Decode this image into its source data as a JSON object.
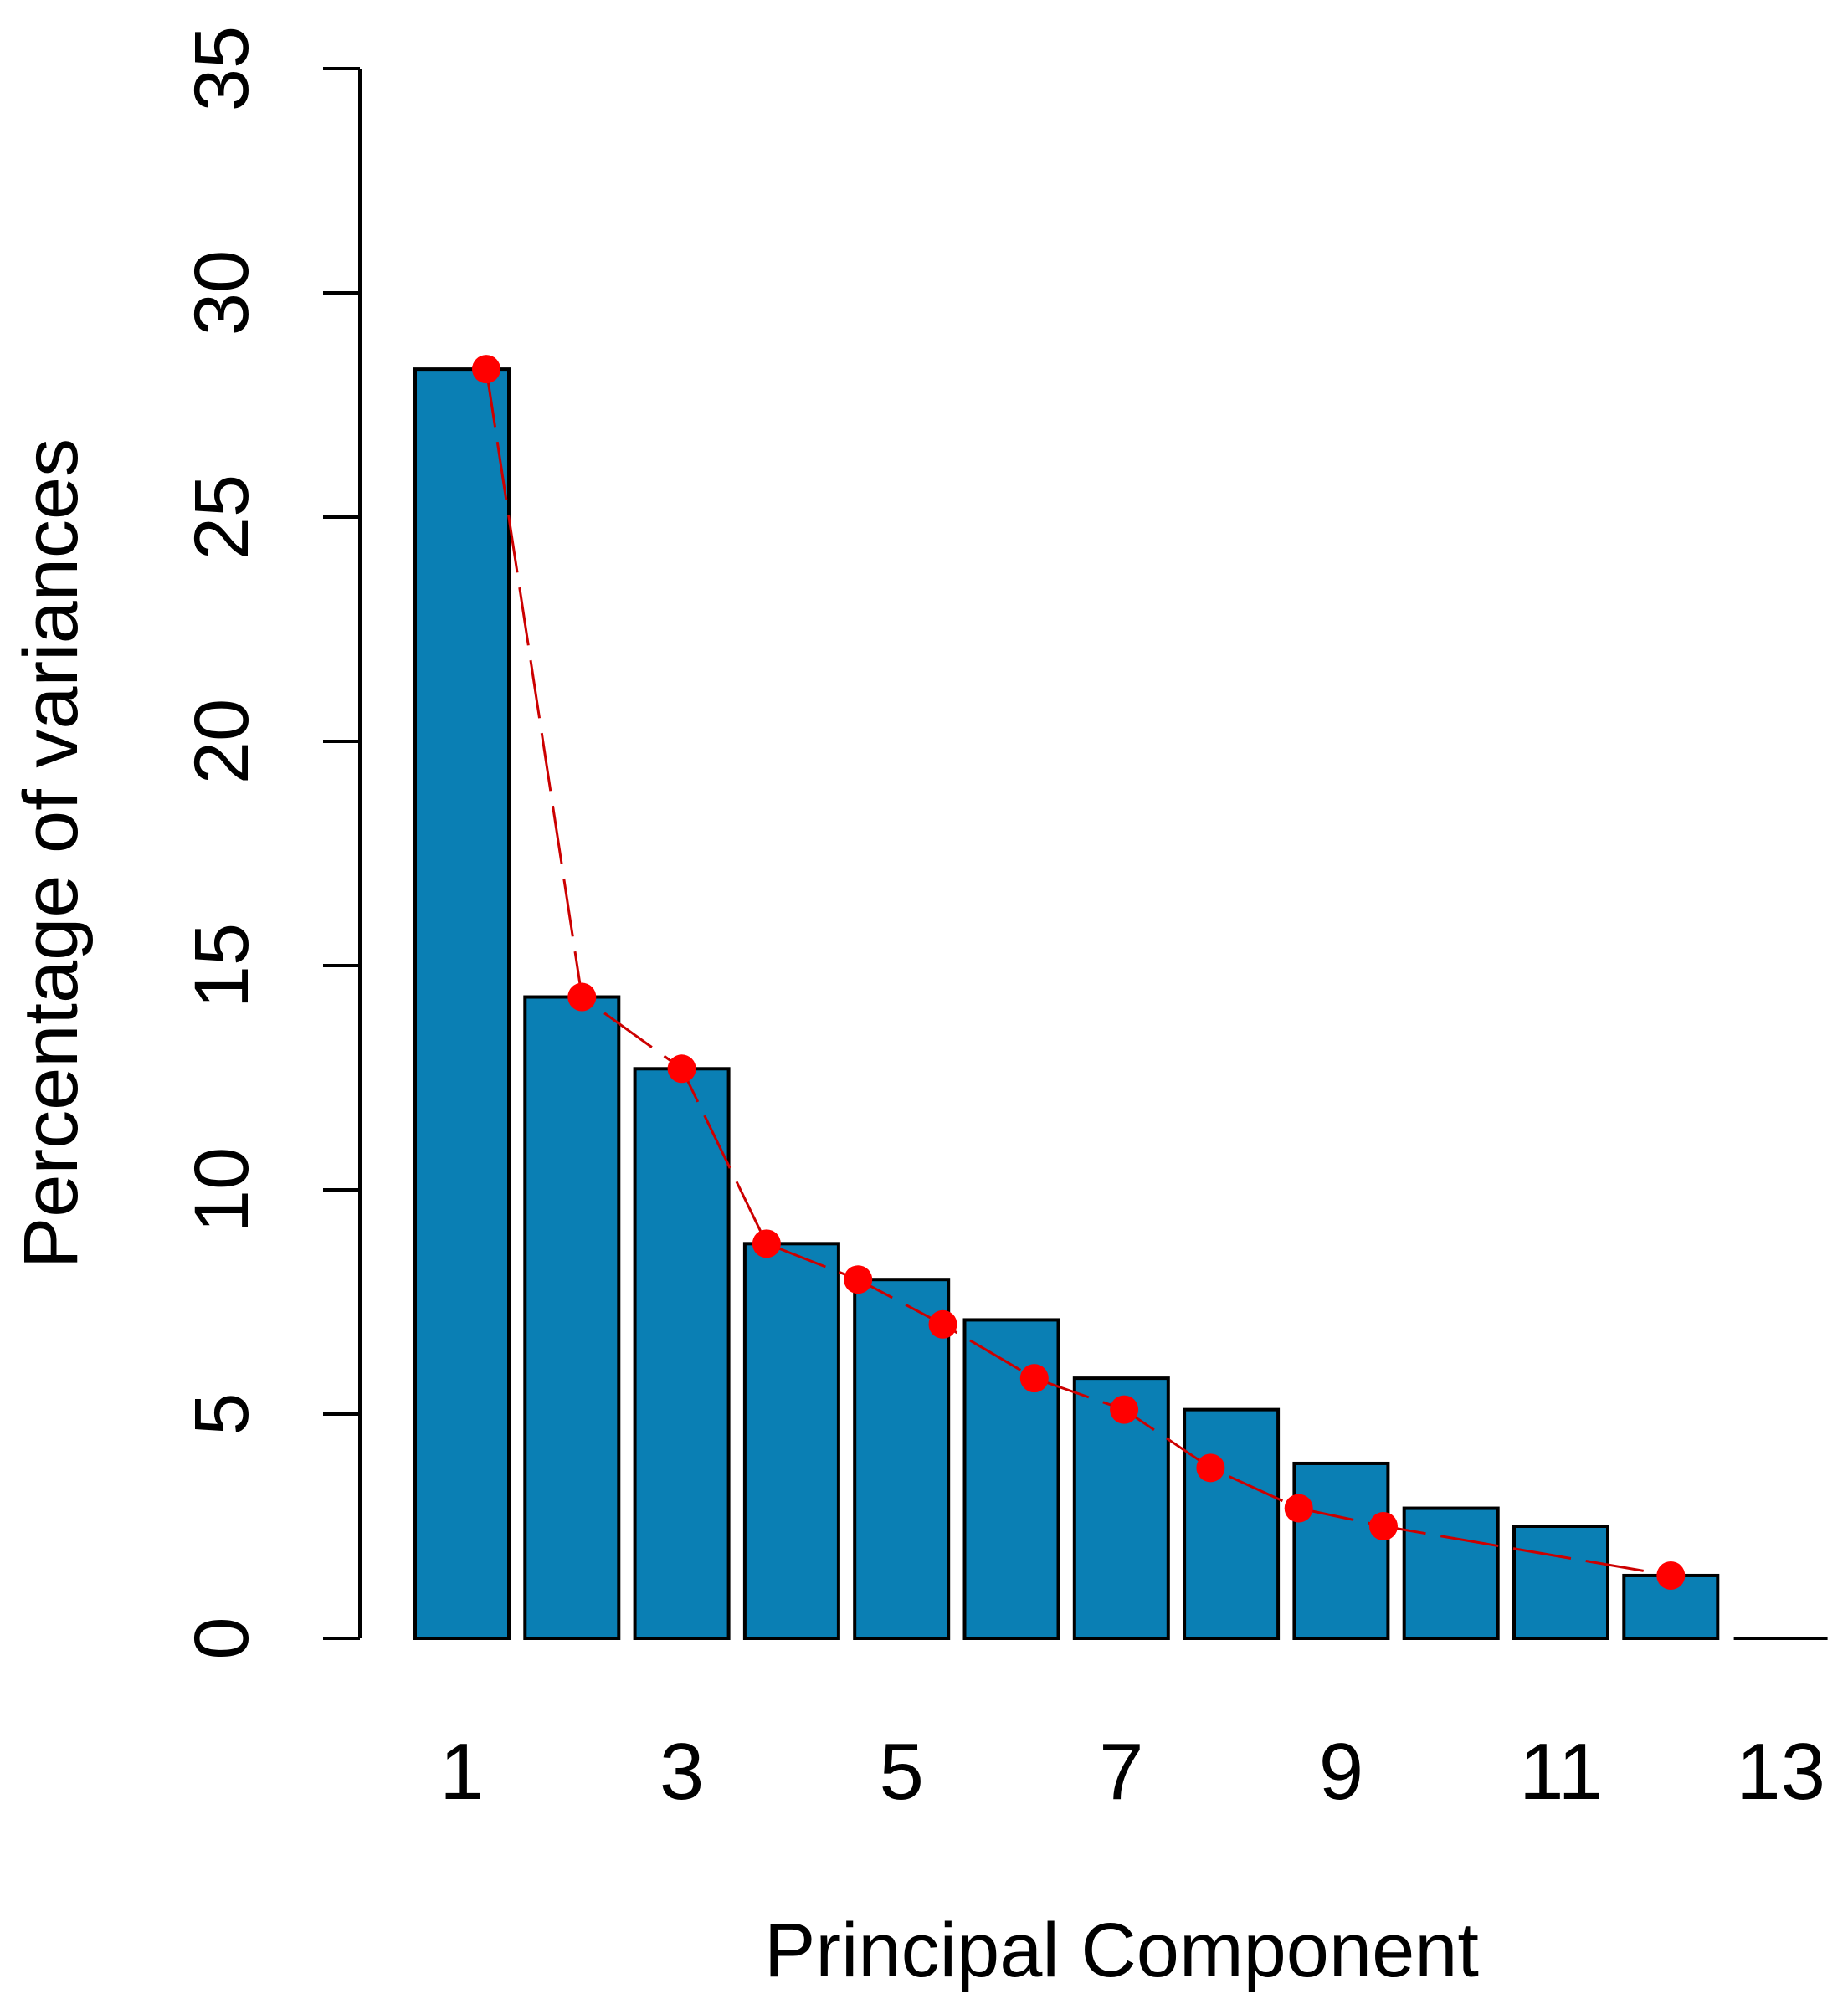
{
  "chart_data": {
    "type": "bar",
    "title": "",
    "xlabel": "Principal Component",
    "ylabel": "Percentage of variances",
    "categories": [
      "1",
      "2",
      "3",
      "4",
      "5",
      "6",
      "7",
      "8",
      "9",
      "10",
      "11",
      "12",
      "13"
    ],
    "values": [
      28.3,
      14.3,
      12.7,
      8.8,
      8.0,
      7.1,
      5.8,
      5.1,
      3.9,
      2.9,
      2.5,
      1.4,
      0.0
    ],
    "x_tick_labels": [
      "1",
      "3",
      "5",
      "7",
      "9",
      "11",
      "13"
    ],
    "y_ticks": [
      0,
      5,
      10,
      15,
      20,
      25,
      30,
      35
    ],
    "ylim": [
      0,
      35
    ],
    "grid": false,
    "bar_color": "#0a7fb4",
    "overlay_line": {
      "type": "line",
      "color": "#ff0000",
      "line_color": "#cc0000",
      "points": [
        28.3,
        14.3,
        12.7,
        8.8,
        8.0,
        7.0,
        5.8,
        5.1,
        3.8,
        2.9,
        2.5,
        1.4,
        0.0
      ]
    }
  }
}
